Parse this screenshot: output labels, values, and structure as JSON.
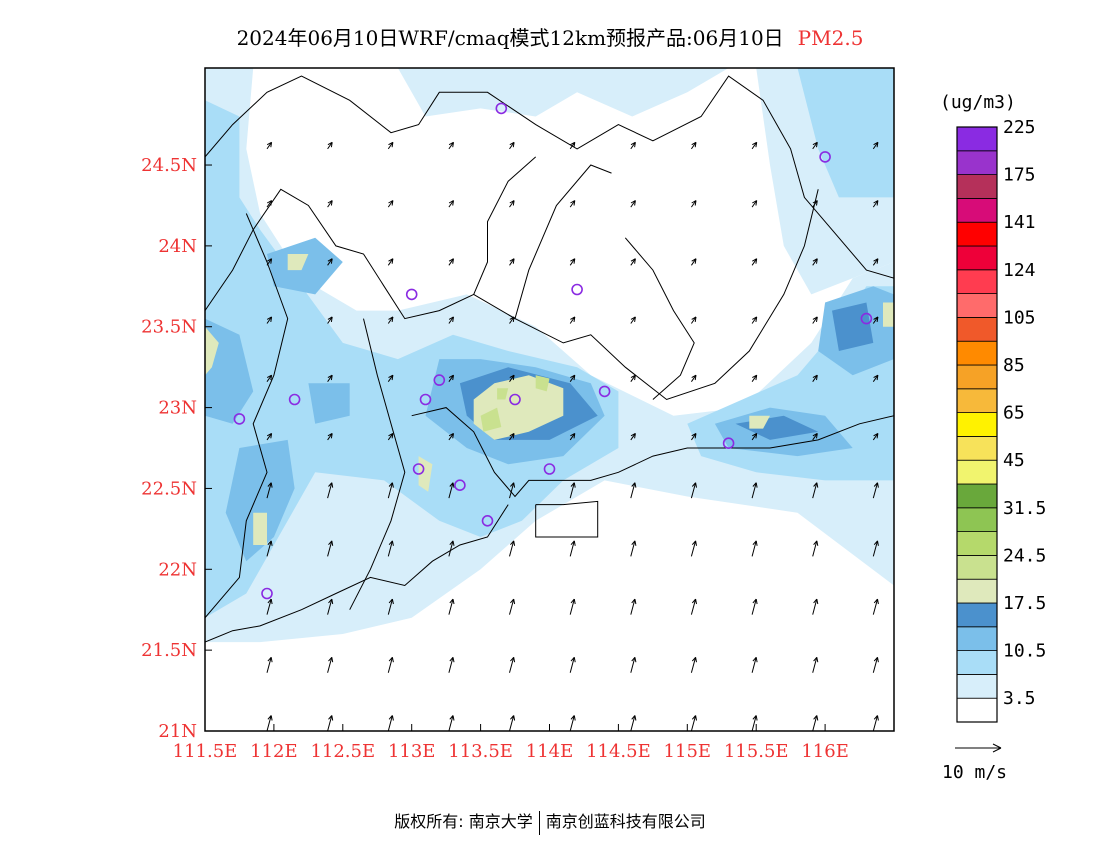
{
  "header": {
    "title": "2024年06月10日WRF/cmaq模式12km预报产品:06月10日",
    "pollutant": "PM2.5"
  },
  "map": {
    "lat_ticks": [
      "24.5N",
      "24N",
      "23.5N",
      "23N",
      "22.5N",
      "22N",
      "21.5N",
      "21N"
    ],
    "lon_ticks": [
      "111.5E",
      "112E",
      "112.5E",
      "113E",
      "113.5E",
      "114E",
      "114.5E",
      "115E",
      "115.5E",
      "116E"
    ],
    "lat_range": [
      21,
      25.1
    ],
    "lon_range": [
      111.5,
      116.5
    ],
    "stations": [
      [
        113.65,
        24.85
      ],
      [
        116.0,
        24.55
      ],
      [
        113.0,
        23.7
      ],
      [
        114.2,
        23.73
      ],
      [
        116.3,
        23.55
      ],
      [
        112.15,
        23.05
      ],
      [
        111.75,
        22.93
      ],
      [
        113.1,
        23.05
      ],
      [
        113.2,
        23.17
      ],
      [
        113.75,
        23.05
      ],
      [
        114.4,
        23.1
      ],
      [
        113.05,
        22.62
      ],
      [
        113.35,
        22.52
      ],
      [
        113.55,
        22.3
      ],
      [
        114.0,
        22.62
      ],
      [
        115.3,
        22.78
      ],
      [
        111.95,
        21.85
      ]
    ]
  },
  "colorbar": {
    "unit": "(ug/m3)",
    "colors": [
      "#ffffff",
      "#d7eefa",
      "#a9ddf7",
      "#7bbfea",
      "#4b91cd",
      "#dfe9bc",
      "#c9e18f",
      "#b5d96b",
      "#8ec553",
      "#69a83b",
      "#f1f46e",
      "#f7e25a",
      "#fff200",
      "#f7b93a",
      "#f6a226",
      "#ff8a00",
      "#f0592a",
      "#ff6b6b",
      "#ff3c50",
      "#ee0039",
      "#ff0000",
      "#d70c78",
      "#b5305a",
      "#9933cc",
      "#8a2be2"
    ],
    "labels": [
      "3.5",
      "10.5",
      "17.5",
      "24.5",
      "31.5",
      "45",
      "65",
      "85",
      "105",
      "124",
      "141",
      "175",
      "225"
    ]
  },
  "wind_legend": {
    "label": "10 m/s"
  },
  "footer": {
    "left": "版权所有: 南京大学",
    "right": "南京创蓝科技有限公司"
  }
}
